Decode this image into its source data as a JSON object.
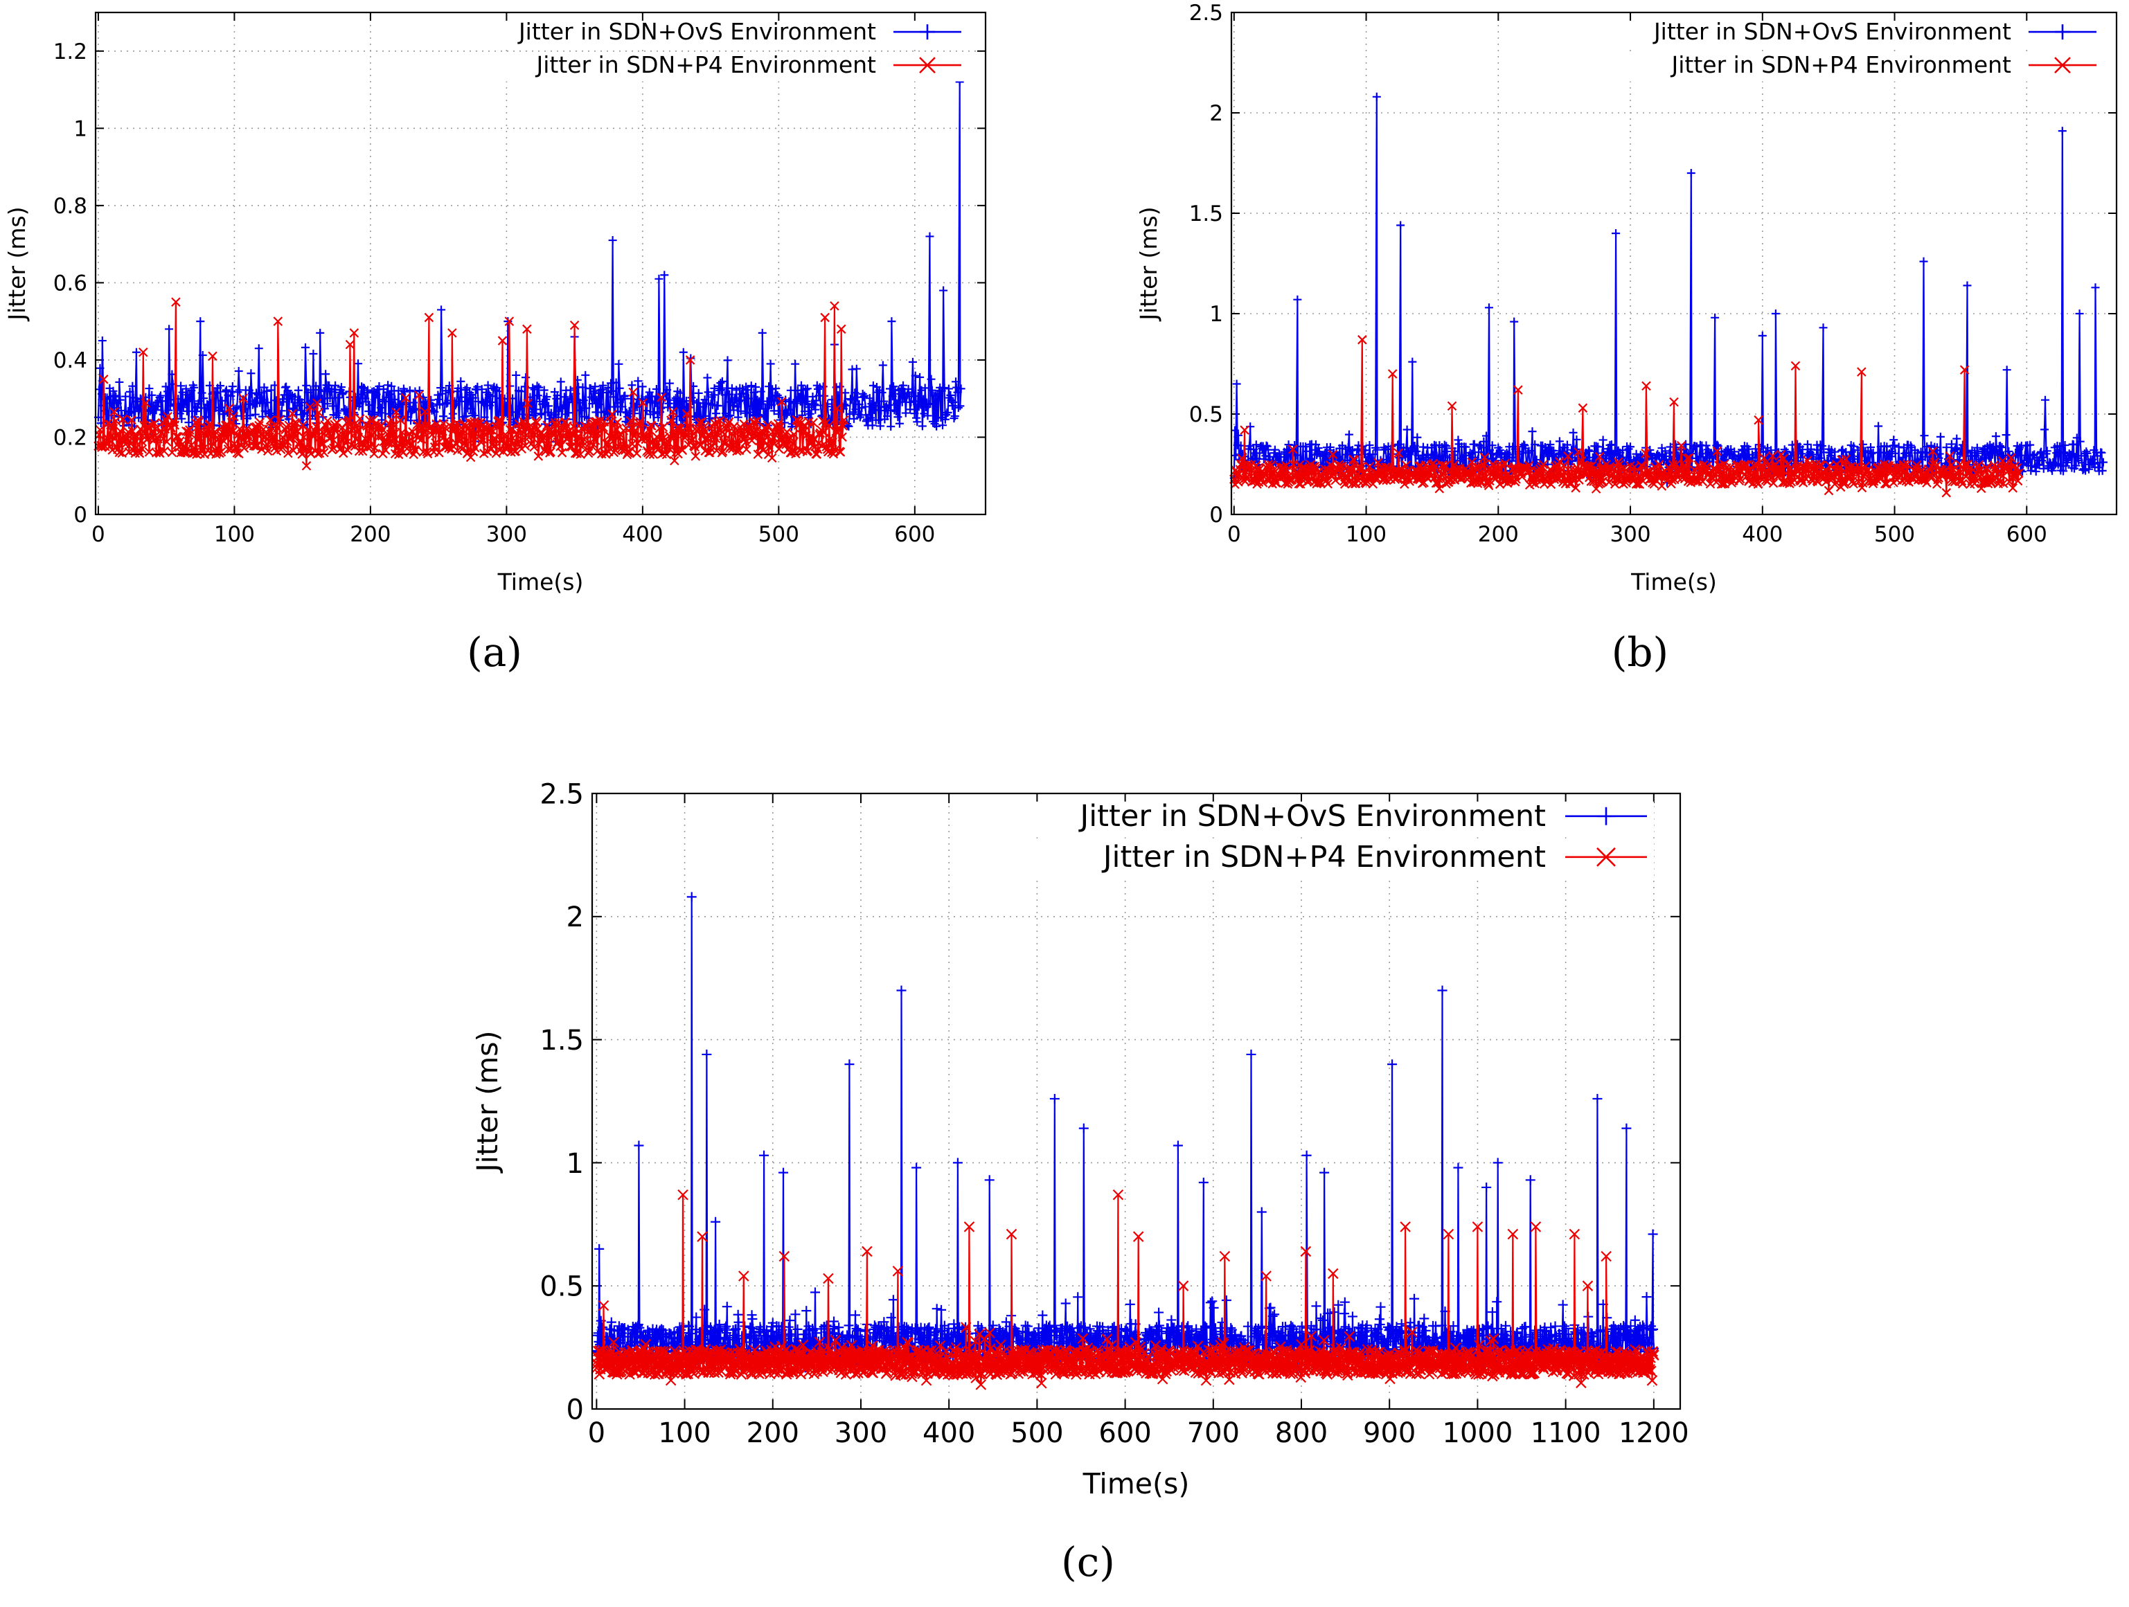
{
  "chart_data": [
    {
      "type": "line",
      "panel_label": "(a)",
      "panel_letter": "a",
      "xlabel": "Time(s)",
      "ylabel": "Jitter (ms)",
      "xlim": [
        -2,
        652
      ],
      "ylim": [
        0,
        1.3
      ],
      "xticks": [
        0,
        100,
        200,
        300,
        400,
        500,
        600
      ],
      "yticks": [
        0,
        0.2,
        0.4,
        0.6,
        0.8,
        1,
        1.2
      ],
      "legend_position": "top-right",
      "series": [
        {
          "name": "Jitter in SDN+OvS Environment",
          "color": "#0000ee",
          "marker": "plus",
          "x_end": 634,
          "baseline": 0.28,
          "spread": 0.055,
          "seed": 11,
          "spikes": [
            [
              3,
              0.45
            ],
            [
              28,
              0.42
            ],
            [
              52,
              0.48
            ],
            [
              75,
              0.5
            ],
            [
              118,
              0.43
            ],
            [
              163,
              0.47
            ],
            [
              252,
              0.53
            ],
            [
              301,
              0.5
            ],
            [
              350,
              0.46
            ],
            [
              378,
              0.71
            ],
            [
              412,
              0.61
            ],
            [
              416,
              0.62
            ],
            [
              430,
              0.42
            ],
            [
              488,
              0.47
            ],
            [
              541,
              0.44
            ],
            [
              583,
              0.5
            ],
            [
              611,
              0.72
            ],
            [
              621,
              0.58
            ],
            [
              633,
              1.12
            ]
          ]
        },
        {
          "name": "Jitter in SDN+P4 Environment",
          "color": "#ee0000",
          "marker": "x",
          "x_end": 548,
          "baseline": 0.2,
          "spread": 0.045,
          "seed": 23,
          "spikes": [
            [
              4,
              0.35
            ],
            [
              33,
              0.42
            ],
            [
              57,
              0.55
            ],
            [
              84,
              0.41
            ],
            [
              132,
              0.5
            ],
            [
              185,
              0.44
            ],
            [
              188,
              0.47
            ],
            [
              243,
              0.51
            ],
            [
              260,
              0.47
            ],
            [
              297,
              0.45
            ],
            [
              302,
              0.5
            ],
            [
              315,
              0.48
            ],
            [
              350,
              0.49
            ],
            [
              435,
              0.4
            ],
            [
              534,
              0.51
            ],
            [
              541,
              0.54
            ],
            [
              546,
              0.48
            ]
          ]
        }
      ]
    },
    {
      "type": "line",
      "panel_label": "(b)",
      "panel_letter": "b",
      "xlabel": "Time(s)",
      "ylabel": "Jitter (ms)",
      "xlim": [
        -2,
        668
      ],
      "ylim": [
        0,
        2.5
      ],
      "xticks": [
        0,
        100,
        200,
        300,
        400,
        500,
        600
      ],
      "yticks": [
        0,
        0.5,
        1,
        1.5,
        2,
        2.5
      ],
      "legend_position": "top-right",
      "series": [
        {
          "name": "Jitter in SDN+OvS Environment",
          "color": "#0000ee",
          "marker": "plus",
          "x_end": 658,
          "baseline": 0.28,
          "spread": 0.07,
          "seed": 31,
          "spikes": [
            [
              2,
              0.65
            ],
            [
              48,
              1.07
            ],
            [
              108,
              2.08
            ],
            [
              126,
              1.44
            ],
            [
              135,
              0.76
            ],
            [
              193,
              1.03
            ],
            [
              212,
              0.96
            ],
            [
              289,
              1.4
            ],
            [
              346,
              1.7
            ],
            [
              364,
              0.98
            ],
            [
              400,
              0.89
            ],
            [
              410,
              1.0
            ],
            [
              446,
              0.93
            ],
            [
              522,
              1.26
            ],
            [
              555,
              1.14
            ],
            [
              585,
              0.72
            ],
            [
              627,
              1.91
            ],
            [
              640,
              1.0
            ],
            [
              652,
              1.13
            ],
            [
              614,
              0.57
            ]
          ]
        },
        {
          "name": "Jitter in SDN+P4 Environment",
          "color": "#ee0000",
          "marker": "x",
          "x_end": 594,
          "baseline": 0.2,
          "spread": 0.05,
          "seed": 47,
          "spikes": [
            [
              8,
              0.42
            ],
            [
              97,
              0.87
            ],
            [
              120,
              0.7
            ],
            [
              165,
              0.54
            ],
            [
              215,
              0.62
            ],
            [
              264,
              0.53
            ],
            [
              312,
              0.64
            ],
            [
              333,
              0.56
            ],
            [
              425,
              0.74
            ],
            [
              475,
              0.71
            ],
            [
              553,
              0.72
            ],
            [
              397,
              0.47
            ]
          ]
        }
      ]
    },
    {
      "type": "line",
      "panel_label": "(c)",
      "panel_letter": "c",
      "xlabel": "Time(s)",
      "ylabel": "Jitter (ms)",
      "xlim": [
        -5,
        1230
      ],
      "ylim": [
        0,
        2.5
      ],
      "xticks": [
        0,
        100,
        200,
        300,
        400,
        500,
        600,
        700,
        800,
        900,
        1000,
        1100,
        1200
      ],
      "yticks": [
        0,
        0.5,
        1,
        1.5,
        2,
        2.5
      ],
      "legend_position": "top-right",
      "series": [
        {
          "name": "Jitter in SDN+OvS Environment",
          "color": "#0000ee",
          "marker": "plus",
          "x_end": 1200,
          "baseline": 0.27,
          "spread": 0.07,
          "seed": 59,
          "spikes": [
            [
              3,
              0.65
            ],
            [
              48,
              1.07
            ],
            [
              108,
              2.08
            ],
            [
              125,
              1.44
            ],
            [
              135,
              0.76
            ],
            [
              190,
              1.03
            ],
            [
              212,
              0.96
            ],
            [
              287,
              1.4
            ],
            [
              346,
              1.7
            ],
            [
              363,
              0.98
            ],
            [
              410,
              1.0
            ],
            [
              446,
              0.93
            ],
            [
              520,
              1.26
            ],
            [
              553,
              1.14
            ],
            [
              660,
              1.07
            ],
            [
              689,
              0.92
            ],
            [
              743,
              1.44
            ],
            [
              755,
              0.8
            ],
            [
              806,
              1.03
            ],
            [
              826,
              0.96
            ],
            [
              903,
              1.4
            ],
            [
              960,
              1.7
            ],
            [
              978,
              0.98
            ],
            [
              1010,
              0.9
            ],
            [
              1023,
              1.0
            ],
            [
              1060,
              0.93
            ],
            [
              1136,
              1.26
            ],
            [
              1169,
              1.14
            ],
            [
              1199,
              0.71
            ]
          ]
        },
        {
          "name": "Jitter in SDN+P4 Environment",
          "color": "#ee0000",
          "marker": "x",
          "x_end": 1200,
          "baseline": 0.19,
          "spread": 0.05,
          "seed": 71,
          "spikes": [
            [
              8,
              0.42
            ],
            [
              98,
              0.87
            ],
            [
              120,
              0.7
            ],
            [
              167,
              0.54
            ],
            [
              213,
              0.62
            ],
            [
              263,
              0.53
            ],
            [
              307,
              0.64
            ],
            [
              342,
              0.56
            ],
            [
              423,
              0.74
            ],
            [
              471,
              0.71
            ],
            [
              592,
              0.87
            ],
            [
              615,
              0.7
            ],
            [
              666,
              0.5
            ],
            [
              713,
              0.62
            ],
            [
              760,
              0.54
            ],
            [
              805,
              0.64
            ],
            [
              836,
              0.55
            ],
            [
              918,
              0.74
            ],
            [
              967,
              0.71
            ],
            [
              1000,
              0.74
            ],
            [
              1040,
              0.71
            ],
            [
              1066,
              0.74
            ],
            [
              1110,
              0.71
            ],
            [
              1146,
              0.62
            ],
            [
              1125,
              0.5
            ]
          ]
        }
      ]
    }
  ]
}
